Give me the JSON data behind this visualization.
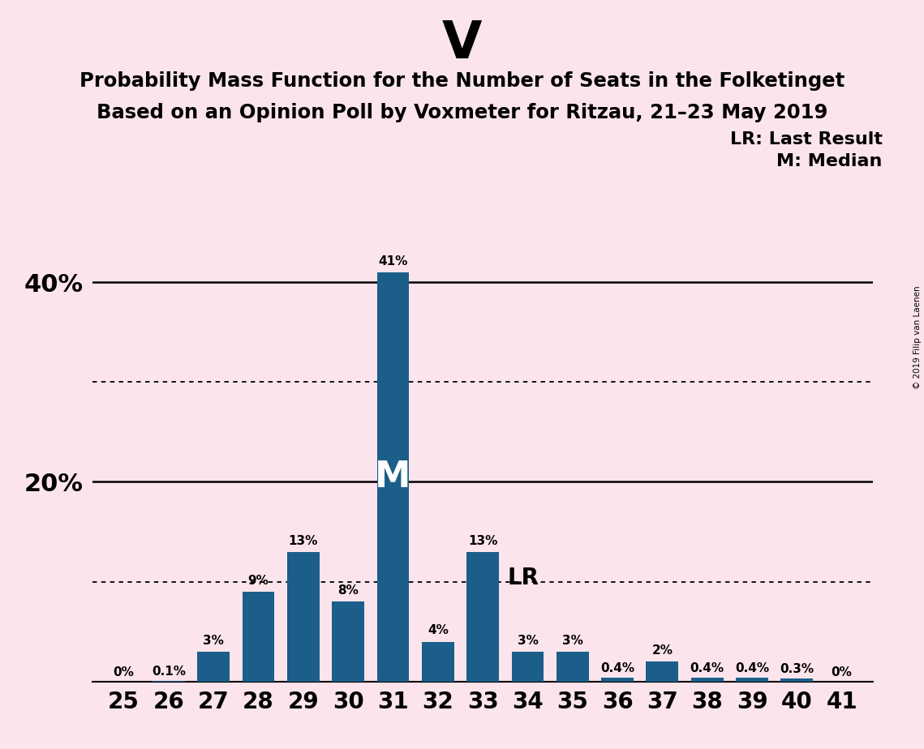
{
  "title": "V",
  "subtitle1": "Probability Mass Function for the Number of Seats in the Folketinget",
  "subtitle2": "Based on an Opinion Poll by Voxmeter for Ritzau, 21–23 May 2019",
  "copyright": "© 2019 Filip van Laenen",
  "legend_lr": "LR: Last Result",
  "legend_m": "M: Median",
  "background_color": "#fce4ec",
  "bar_color": "#1b5e8a",
  "categories": [
    25,
    26,
    27,
    28,
    29,
    30,
    31,
    32,
    33,
    34,
    35,
    36,
    37,
    38,
    39,
    40,
    41
  ],
  "values": [
    0.0,
    0.1,
    3.0,
    9.0,
    13.0,
    8.0,
    41.0,
    4.0,
    13.0,
    3.0,
    3.0,
    0.4,
    2.0,
    0.4,
    0.4,
    0.3,
    0.0
  ],
  "labels": [
    "0%",
    "0.1%",
    "3%",
    "9%",
    "13%",
    "8%",
    "41%",
    "4%",
    "13%",
    "3%",
    "3%",
    "0.4%",
    "2%",
    "0.4%",
    "0.4%",
    "0.3%",
    "0%"
  ],
  "median_seat": 31,
  "lr_seat": 33,
  "ylim": [
    0,
    45
  ],
  "yticks": [
    0,
    20,
    40
  ],
  "ytick_labels": [
    "",
    "20%",
    "40%"
  ],
  "dotted_lines": [
    10,
    30
  ],
  "solid_lines": [
    20,
    40
  ]
}
